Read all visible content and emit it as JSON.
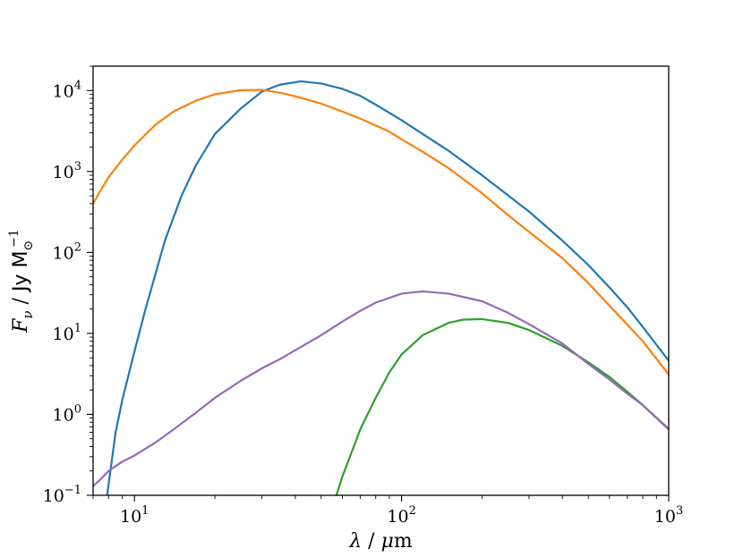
{
  "chart_data": {
    "type": "line",
    "title": "",
    "xlabel": "λ / μm",
    "ylabel": "F_ν / Jy M⊙^-1",
    "x_scale": "log",
    "y_scale": "log",
    "xlim": [
      7,
      1000
    ],
    "ylim": [
      0.1,
      20000
    ],
    "grid": false,
    "legend": "none",
    "x_ticks": [
      {
        "value": 10,
        "label": "10^1"
      },
      {
        "value": 100,
        "label": "10^2"
      },
      {
        "value": 1000,
        "label": "10^3"
      }
    ],
    "y_ticks": [
      {
        "value": 0.1,
        "label": "10^-1"
      },
      {
        "value": 1,
        "label": "10^0"
      },
      {
        "value": 10,
        "label": "10^1"
      },
      {
        "value": 100,
        "label": "10^2"
      },
      {
        "value": 1000,
        "label": "10^3"
      },
      {
        "value": 10000,
        "label": "10^4"
      }
    ],
    "series": [
      {
        "color": "#1f77b4",
        "x": [
          7.9,
          8.5,
          9,
          10,
          11,
          12,
          13,
          15,
          17,
          20,
          25,
          30,
          35,
          42,
          50,
          60,
          70,
          80,
          100,
          120,
          150,
          200,
          300,
          400,
          500,
          600,
          700,
          800,
          1000
        ],
        "y": [
          0.1,
          0.6,
          1.5,
          6,
          20,
          55,
          140,
          500,
          1200,
          2900,
          6000,
          9700,
          11800,
          13000,
          12200,
          10500,
          8600,
          6700,
          4300,
          2900,
          1800,
          900,
          320,
          140,
          70,
          37,
          21,
          12,
          4.6
        ]
      },
      {
        "color": "#ff7f0e",
        "x": [
          7,
          7.5,
          8,
          9,
          10,
          12,
          14,
          17,
          20,
          25,
          30,
          35,
          40,
          50,
          60,
          70,
          80,
          90,
          100,
          120,
          150,
          200,
          250,
          300,
          400,
          500,
          600,
          800,
          1000
        ],
        "y": [
          400,
          600,
          850,
          1400,
          2100,
          3800,
          5500,
          7500,
          9000,
          10100,
          10200,
          9400,
          8500,
          6900,
          5500,
          4500,
          3700,
          3100,
          2500,
          1750,
          1100,
          540,
          290,
          180,
          85,
          42,
          22,
          8,
          3.1
        ]
      },
      {
        "color": "#2ca02c",
        "x": [
          57,
          60,
          65,
          70,
          80,
          90,
          100,
          120,
          150,
          170,
          200,
          250,
          300,
          400,
          500,
          600,
          700,
          800,
          1000
        ],
        "y": [
          0.1,
          0.17,
          0.34,
          0.65,
          1.6,
          3.3,
          5.5,
          9.5,
          13.5,
          14.8,
          15,
          13.5,
          11,
          7,
          4.4,
          2.9,
          1.9,
          1.3,
          0.66
        ]
      },
      {
        "color": "#9467bd",
        "x": [
          7,
          7.5,
          8,
          9,
          10,
          12,
          14,
          17,
          20,
          25,
          30,
          35,
          40,
          50,
          60,
          70,
          80,
          100,
          120,
          150,
          200,
          250,
          300,
          400,
          500,
          600,
          700,
          800,
          1000
        ],
        "y": [
          0.13,
          0.16,
          0.2,
          0.26,
          0.31,
          0.45,
          0.65,
          1.05,
          1.6,
          2.6,
          3.7,
          4.8,
          6.2,
          9.5,
          14,
          19,
          24,
          31,
          33,
          31,
          25,
          18,
          13,
          7.5,
          4.2,
          2.7,
          1.8,
          1.3,
          0.65
        ]
      }
    ]
  }
}
